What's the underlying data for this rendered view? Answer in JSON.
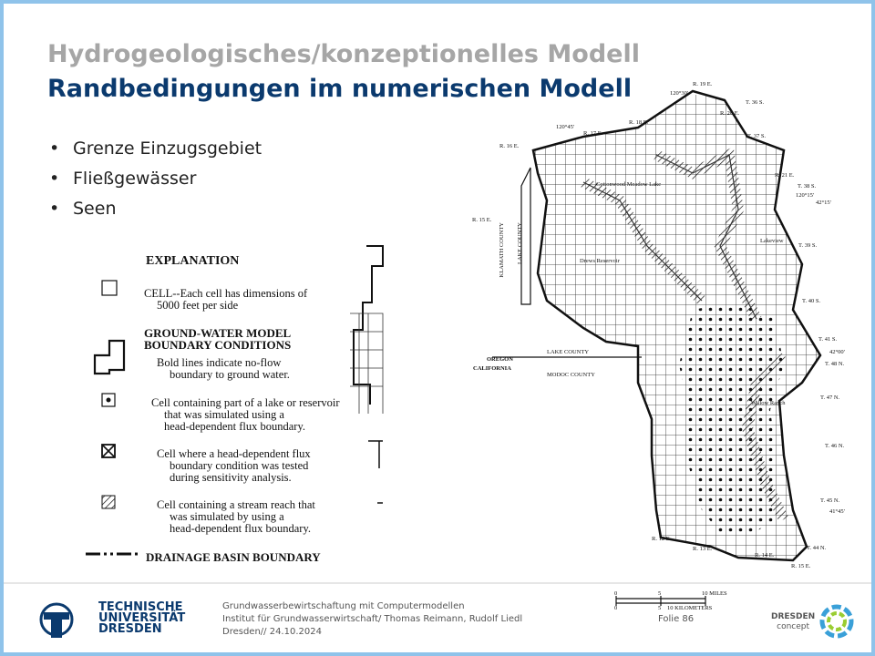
{
  "header": {
    "supertitle": "Hydrogeologisches/konzeptionelles Modell",
    "title": "Randbedingungen im numerischen Modell"
  },
  "bullets": [
    "Grenze Einzugsgebiet",
    "Fließgewässer",
    "Seen"
  ],
  "explanation": {
    "title": "EXPLANATION",
    "items": [
      [
        "CELL--Each cell has dimensions of",
        "5000 feet per side"
      ],
      [
        "GROUND-WATER MODEL",
        "BOUNDARY CONDITIONS"
      ],
      [
        "Bold lines indicate no-flow",
        "boundary to ground water."
      ],
      [
        "Cell containing part of a lake or reservoir",
        "that was simulated using a",
        "head-dependent flux boundary."
      ],
      [
        "Cell where a head-dependent flux",
        "boundary condition was tested",
        "during sensitivity analysis."
      ],
      [
        "Cell containing a stream reach that",
        "was simulated by using a",
        "head-dependent flux boundary."
      ],
      [
        "DRAINAGE BASIN BOUNDARY"
      ]
    ]
  },
  "map": {
    "labels": [
      "R. 19 E.",
      "120°30'",
      "T. 36 S.",
      "R. 20 E.",
      "R. 18 E.",
      "R. 17 E.",
      "120°45'",
      "R. 16 E.",
      "T. 37 S.",
      "R. 21 E.",
      "T. 38 S.",
      "120°15'",
      "42°15'",
      "R. 15 E.",
      "T. 39 S.",
      "T. 40 S.",
      "T. 41 S.",
      "42°00'",
      "T. 48 N.",
      "OREGON",
      "CALIFORNIA",
      "LAKE COUNTY",
      "MODOC COUNTY",
      "T. 47 N.",
      "T. 46 N.",
      "T. 45 N.",
      "41°45'",
      "R. 12 E.",
      "R. 13 E.",
      "R. 14 E.",
      "R. 15 E.",
      "T. 44 N.",
      "Cottonwood Meadow Lake",
      "Drews Reservoir",
      "Lakeview",
      "Willow Ranch",
      "KLAMATH COUNTY",
      "LAKE COUNTY"
    ],
    "scale": [
      "0",
      "5",
      "10 MILES",
      "0",
      "5",
      "10 KILOMETERS"
    ]
  },
  "footer": {
    "logo": [
      "TECHNISCHE",
      "UNIVERSITÄT",
      "DRESDEN"
    ],
    "lines": [
      "Grundwasserbewirtschaftung mit Computermodellen",
      "Institut für Grundwasserwirtschaft/ Thomas Reimann, Rudolf Liedl",
      "Dresden// 24.10.2024"
    ],
    "page": "Folie 86",
    "concept": [
      "DRESDEN",
      "concept"
    ]
  }
}
